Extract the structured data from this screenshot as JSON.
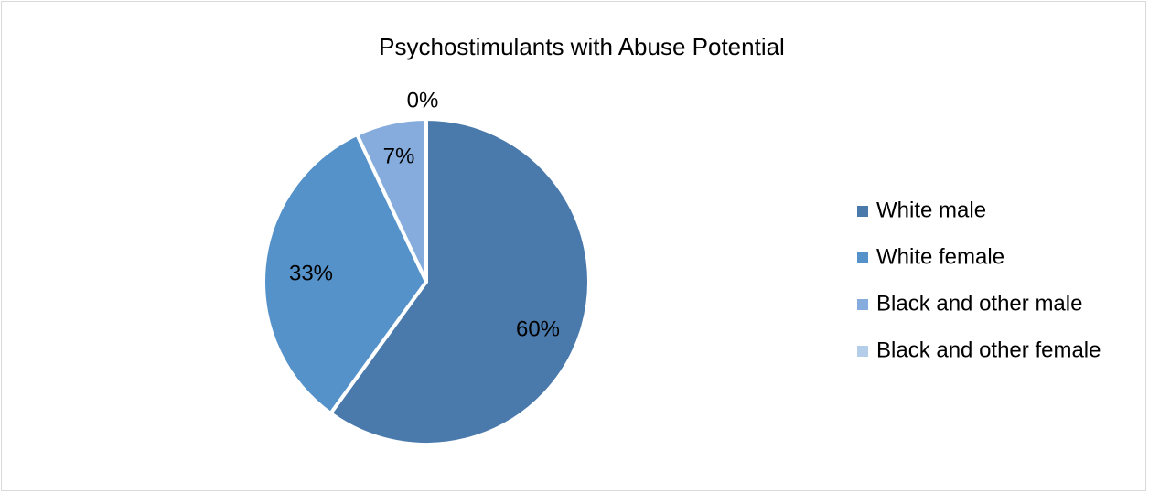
{
  "chart_data": {
    "type": "pie",
    "title": "Psychostimulants with Abuse Potential",
    "categories": [
      "White male",
      "White female",
      "Black and other male",
      "Black and other female"
    ],
    "values": [
      60,
      33,
      7,
      0
    ],
    "data_labels": [
      "60%",
      "33%",
      "7%",
      "0%"
    ],
    "colors": [
      "#4a7aab",
      "#5592c9",
      "#85acdc",
      "#b4cde9"
    ],
    "legend_position": "right"
  }
}
